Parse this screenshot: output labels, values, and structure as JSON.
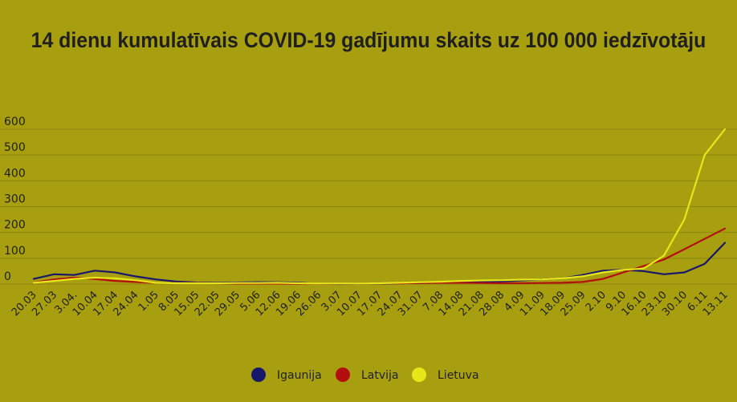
{
  "chart_data": {
    "type": "line",
    "title": "14 dienu kumulatīvais COVID-19 gadījumu skaits uz 100 000 iedzīvotāju",
    "xlabel": "",
    "ylabel": "",
    "ylim": [
      0,
      600
    ],
    "yticks": [
      0,
      100,
      200,
      300,
      400,
      500,
      600
    ],
    "grid": true,
    "legend_position": "bottom",
    "categories": [
      "20.03",
      "27.03",
      "3.04.",
      "10.04",
      "17.04",
      "24.04",
      "1.05",
      "8.05",
      "15.05",
      "22.05",
      "29.05",
      "5.06",
      "12.06",
      "19.06",
      "26.06",
      "3.07",
      "10.07",
      "17.07",
      "24.07",
      "31.07",
      "7.08",
      "14.08",
      "21.08",
      "28.08",
      "4.09",
      "11.09",
      "18.09",
      "25.09",
      "2.10",
      "9.10",
      "16.10",
      "23.10",
      "30.10",
      "6.11",
      "13.11"
    ],
    "series": [
      {
        "name": "Igaunija",
        "color": "#17176b",
        "values": [
          20,
          38,
          35,
          52,
          45,
          30,
          18,
          10,
          6,
          5,
          6,
          7,
          7,
          5,
          1,
          0,
          1,
          2,
          3,
          4,
          5,
          6,
          8,
          10,
          14,
          18,
          22,
          35,
          52,
          55,
          50,
          38,
          45,
          78,
          160
        ]
      },
      {
        "name": "Latvija",
        "color": "#b30f0f",
        "values": [
          6,
          18,
          25,
          20,
          12,
          8,
          5,
          4,
          4,
          3,
          2,
          2,
          2,
          1,
          1,
          1,
          2,
          3,
          3,
          4,
          5,
          5,
          4,
          3,
          3,
          4,
          5,
          8,
          20,
          45,
          70,
          95,
          135,
          175,
          215
        ]
      },
      {
        "name": "Lietuva",
        "color": "#e6e619",
        "values": [
          5,
          12,
          20,
          25,
          22,
          15,
          5,
          3,
          3,
          3,
          4,
          4,
          5,
          3,
          2,
          2,
          2,
          3,
          5,
          7,
          9,
          12,
          14,
          15,
          17,
          18,
          22,
          30,
          45,
          55,
          60,
          110,
          250,
          500,
          600
        ]
      }
    ]
  }
}
